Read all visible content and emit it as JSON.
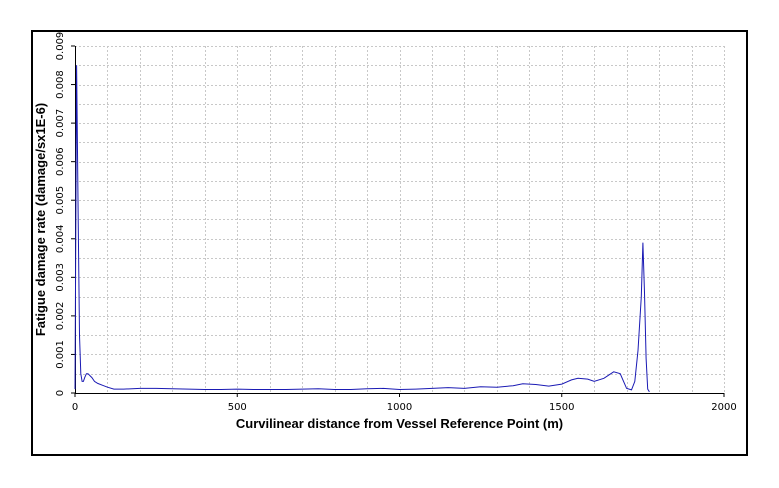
{
  "chart_data": {
    "type": "line",
    "title": "",
    "xlabel": "Curvilinear distance from Vessel Reference Point (m)",
    "ylabel": "Fatigue damage rate (damage/sx1E-6)",
    "xlim": [
      0,
      2000
    ],
    "ylim": [
      0,
      0.009
    ],
    "x_ticks": [
      "0",
      "500",
      "1000",
      "1500",
      "2000"
    ],
    "y_ticks": [
      "0",
      "0.001",
      "0.002",
      "0.003",
      "0.004",
      "0.005",
      "0.006",
      "0.007",
      "0.008",
      "0.009"
    ],
    "grid": true,
    "series_color": "#1a1ab4",
    "series": [
      {
        "x": [
          0,
          5,
          10,
          14,
          18,
          22,
          26,
          30,
          35,
          40,
          46,
          52,
          60,
          70,
          85,
          100,
          120,
          150,
          200,
          250,
          300,
          350,
          400,
          450,
          500,
          550,
          600,
          650,
          700,
          750,
          800,
          850,
          900,
          950,
          1000,
          1050,
          1100,
          1150,
          1200,
          1250,
          1300,
          1350,
          1380,
          1420,
          1460,
          1500,
          1530,
          1550,
          1580,
          1600,
          1630,
          1660,
          1680,
          1700,
          1715,
          1725,
          1735,
          1745,
          1750,
          1755,
          1760,
          1765,
          1770
        ],
        "y": [
          0.0001,
          0.0085,
          0.0045,
          0.0015,
          0.0005,
          0.0003,
          0.0003,
          0.0004,
          0.0005,
          0.0005,
          0.00045,
          0.0004,
          0.0003,
          0.00025,
          0.0002,
          0.00015,
          0.0001,
          0.0001,
          0.00012,
          0.00012,
          0.00011,
          0.0001,
          9e-05,
          9e-05,
          0.0001,
          9e-05,
          9e-05,
          9e-05,
          0.0001,
          0.00011,
          9e-05,
          9e-05,
          0.00011,
          0.00012,
          9e-05,
          0.0001,
          0.00012,
          0.00014,
          0.00012,
          0.00016,
          0.00015,
          0.00019,
          0.00024,
          0.00022,
          0.00018,
          0.00023,
          0.00034,
          0.00038,
          0.00036,
          0.0003,
          0.00038,
          0.00055,
          0.0005,
          0.00012,
          8e-05,
          0.0003,
          0.0011,
          0.0025,
          0.0039,
          0.0026,
          0.0009,
          0.0001,
          3e-05
        ]
      }
    ]
  }
}
